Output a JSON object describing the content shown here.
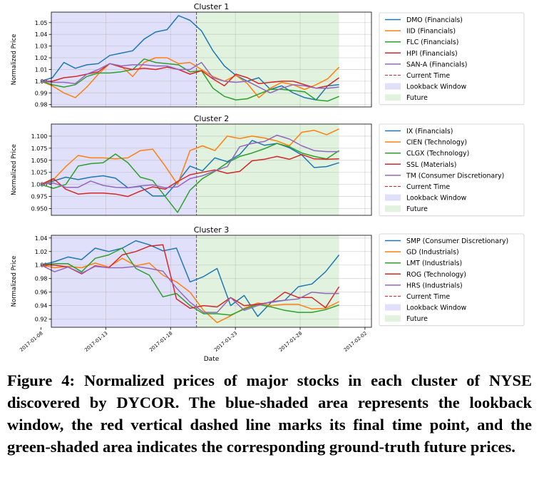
{
  "caption": "Figure 4: Normalized prices of major stocks in each cluster of NYSE discovered by DYCOR. The blue-shaded area represents the lookback window, the red vertical dashed line marks its final time point, and the green-shaded area indicates the corresponding ground-truth future prices.",
  "legend_common": {
    "current_time": "Current Time",
    "lookback": "Lookback Window",
    "future": "Future"
  },
  "colors": {
    "series": [
      "#1f77b4",
      "#ff7f0e",
      "#2ca02c",
      "#d62728",
      "#9467bd"
    ],
    "current_time": "#d62728",
    "lookback_fill": "#e0e0fb",
    "future_fill": "#e1f3de"
  },
  "chart_data": [
    {
      "type": "line",
      "title": "Cluster 1",
      "xlabel": "",
      "ylabel": "Normalized Price",
      "x_range": [
        0,
        23
      ],
      "current_time": 12,
      "lookback": [
        0,
        12
      ],
      "future": [
        12,
        23
      ],
      "ylim": [
        0.978,
        1.059
      ],
      "yticks": [
        0.98,
        0.99,
        1.0,
        1.01,
        1.02,
        1.03,
        1.04,
        1.05
      ],
      "ytick_labels": [
        "0.98",
        "0.99",
        "1.00",
        "1.01",
        "1.02",
        "1.03",
        "1.04",
        "1.05"
      ],
      "series": [
        {
          "name": "DMO (Financials)",
          "values": [
            1.0,
            1.003,
            1.016,
            1.011,
            1.014,
            1.015,
            1.022,
            1.024,
            1.026,
            1.036,
            1.042,
            1.044,
            1.056,
            1.052,
            1.043,
            1.026,
            1.013,
            1.005,
            1.0,
            1.003,
            0.993,
            0.996,
            0.99,
            0.986,
            0.984,
            0.996,
            0.997
          ]
        },
        {
          "name": "IID (Financials)",
          "values": [
            1.0,
            0.996,
            0.99,
            0.986,
            0.995,
            1.006,
            1.015,
            1.013,
            1.004,
            1.016,
            1.02,
            1.02,
            1.015,
            1.016,
            1.01,
            1.004,
            1.0,
            1.005,
            0.998,
            0.986,
            0.994,
            0.999,
            0.997,
            0.993,
            0.997,
            1.002,
            1.012
          ]
        },
        {
          "name": "FLC (Financials)",
          "values": [
            1.0,
            0.997,
            0.995,
            0.997,
            1.004,
            1.007,
            1.007,
            1.008,
            1.01,
            1.019,
            1.016,
            1.015,
            1.014,
            1.008,
            1.009,
            0.994,
            0.987,
            0.984,
            0.985,
            0.989,
            0.993,
            0.993,
            0.992,
            0.991,
            0.984,
            0.983,
            0.987
          ]
        },
        {
          "name": "HPI (Financials)",
          "values": [
            1.0,
            1.0,
            1.003,
            1.004,
            1.006,
            1.008,
            1.015,
            1.012,
            1.01,
            1.011,
            1.01,
            1.012,
            1.01,
            1.006,
            1.009,
            1.002,
            0.996,
            1.006,
            1.003,
            0.998,
            0.999,
            1.0,
            1.0,
            0.997,
            0.994,
            0.996,
            1.003
          ]
        },
        {
          "name": "SAN-A (Financials)",
          "values": [
            1.0,
            0.999,
            0.999,
            0.998,
            1.006,
            1.01,
            1.015,
            1.013,
            1.014,
            1.014,
            1.013,
            1.013,
            1.01,
            1.01,
            1.016,
            1.003,
            1.0,
            0.999,
            1.0,
            0.995,
            0.99,
            0.994,
            0.997,
            0.996,
            0.994,
            0.994,
            0.995
          ]
        }
      ]
    },
    {
      "type": "line",
      "title": "Cluster 2",
      "xlabel": "",
      "ylabel": "Normalized Price",
      "x_range": [
        0,
        23
      ],
      "current_time": 12,
      "lookback": [
        0,
        12
      ],
      "future": [
        12,
        23
      ],
      "ylim": [
        0.936,
        1.125
      ],
      "yticks": [
        0.95,
        0.975,
        1.0,
        1.025,
        1.05,
        1.075,
        1.1
      ],
      "ytick_labels": [
        "0.950",
        "0.975",
        "1.000",
        "1.025",
        "1.050",
        "1.075",
        "1.100"
      ],
      "series": [
        {
          "name": "IX (Financials)",
          "values": [
            1.0,
            1.007,
            1.015,
            1.01,
            1.015,
            1.018,
            1.013,
            0.993,
            0.996,
            0.976,
            0.976,
            1.005,
            1.038,
            1.028,
            1.055,
            1.047,
            1.062,
            1.091,
            1.081,
            1.085,
            1.076,
            1.061,
            1.035,
            1.037,
            1.045
          ]
        },
        {
          "name": "CIEN (Technology)",
          "values": [
            1.0,
            1.01,
            1.037,
            1.06,
            1.055,
            1.055,
            1.053,
            1.055,
            1.07,
            1.073,
            1.038,
            1.0,
            1.07,
            1.08,
            1.07,
            1.1,
            1.095,
            1.1,
            1.096,
            1.09,
            1.08,
            1.108,
            1.112,
            1.103,
            1.115
          ]
        },
        {
          "name": "CLGX (Technology)",
          "values": [
            1.0,
            0.992,
            1.0,
            1.038,
            1.043,
            1.045,
            1.063,
            1.045,
            1.015,
            1.008,
            0.975,
            0.942,
            0.988,
            1.012,
            1.027,
            1.045,
            1.058,
            1.065,
            1.074,
            1.085,
            1.078,
            1.065,
            1.058,
            1.053,
            1.07
          ]
        },
        {
          "name": "SSL (Materials)",
          "values": [
            1.0,
            1.012,
            0.99,
            0.98,
            0.982,
            0.982,
            0.98,
            0.975,
            0.986,
            0.995,
            0.99,
            1.006,
            1.02,
            1.025,
            1.03,
            1.023,
            1.027,
            1.049,
            1.052,
            1.058,
            1.052,
            1.062,
            1.053,
            1.052,
            1.053
          ]
        },
        {
          "name": "TM (Consumer Discretionary)",
          "values": [
            1.0,
            1.003,
            0.994,
            0.994,
            1.007,
            0.998,
            0.994,
            0.993,
            0.997,
            0.999,
            0.993,
            0.995,
            1.012,
            1.018,
            1.028,
            1.037,
            1.078,
            1.085,
            1.089,
            1.102,
            1.094,
            1.08,
            1.07,
            1.068,
            1.068
          ]
        }
      ]
    },
    {
      "type": "line",
      "title": "Cluster 3",
      "xlabel": "Date",
      "ylabel": "Normalized Price",
      "x_range": [
        0,
        23
      ],
      "current_time": 12,
      "lookback": [
        0,
        12
      ],
      "future": [
        12,
        23
      ],
      "ylim": [
        0.908,
        1.044
      ],
      "yticks": [
        0.92,
        0.94,
        0.96,
        0.98,
        1.0,
        1.02,
        1.04
      ],
      "ytick_labels": [
        "0.92",
        "0.94",
        "0.96",
        "0.98",
        "1.00",
        "1.02",
        "1.04"
      ],
      "xticks": [
        0,
        5,
        10,
        15,
        20,
        25
      ],
      "xtick_labels": [
        "2017-01-08",
        "2017-01-13",
        "2017-01-18",
        "2017-01-23",
        "2017-01-28",
        "2017-02-02"
      ],
      "series": [
        {
          "name": "SMP (Consumer Discretionary)",
          "values": [
            1.0,
            1.005,
            1.012,
            1.008,
            1.025,
            1.02,
            1.025,
            1.036,
            1.03,
            1.021,
            1.025,
            0.975,
            0.983,
            0.995,
            0.94,
            0.955,
            0.924,
            0.945,
            0.948,
            0.968,
            0.972,
            0.99,
            1.015
          ]
        },
        {
          "name": "GD (Industrials)",
          "values": [
            1.0,
            0.996,
            0.998,
            0.996,
            1.003,
            0.997,
            1.01,
            0.999,
            1.003,
            0.985,
            0.975,
            0.96,
            0.933,
            0.915,
            0.925,
            0.936,
            0.944,
            0.94,
            0.942,
            0.942,
            0.935,
            0.936,
            0.946
          ]
        },
        {
          "name": "LMT (Industrials)",
          "values": [
            1.0,
            1.002,
            1.002,
            0.99,
            1.01,
            1.015,
            1.025,
            0.995,
            0.985,
            0.953,
            0.958,
            0.94,
            0.928,
            0.928,
            0.926,
            0.935,
            0.942,
            0.938,
            0.933,
            0.93,
            0.93,
            0.934,
            0.941
          ]
        },
        {
          "name": "ROG (Technology)",
          "values": [
            1.0,
            1.0,
            0.997,
            0.987,
            0.999,
            0.996,
            1.015,
            1.02,
            1.028,
            1.03,
            0.95,
            0.936,
            0.94,
            0.938,
            0.952,
            0.94,
            0.942,
            0.945,
            0.96,
            0.952,
            0.952,
            0.937,
            0.968
          ]
        },
        {
          "name": "HRS (Industrials)",
          "values": [
            1.0,
            0.99,
            0.997,
            0.988,
            0.998,
            0.996,
            0.996,
            0.998,
            0.995,
            0.991,
            0.966,
            0.945,
            0.93,
            0.93,
            0.952,
            0.933,
            0.94,
            0.946,
            0.948,
            0.95,
            0.96,
            0.958,
            0.958
          ]
        }
      ]
    }
  ]
}
